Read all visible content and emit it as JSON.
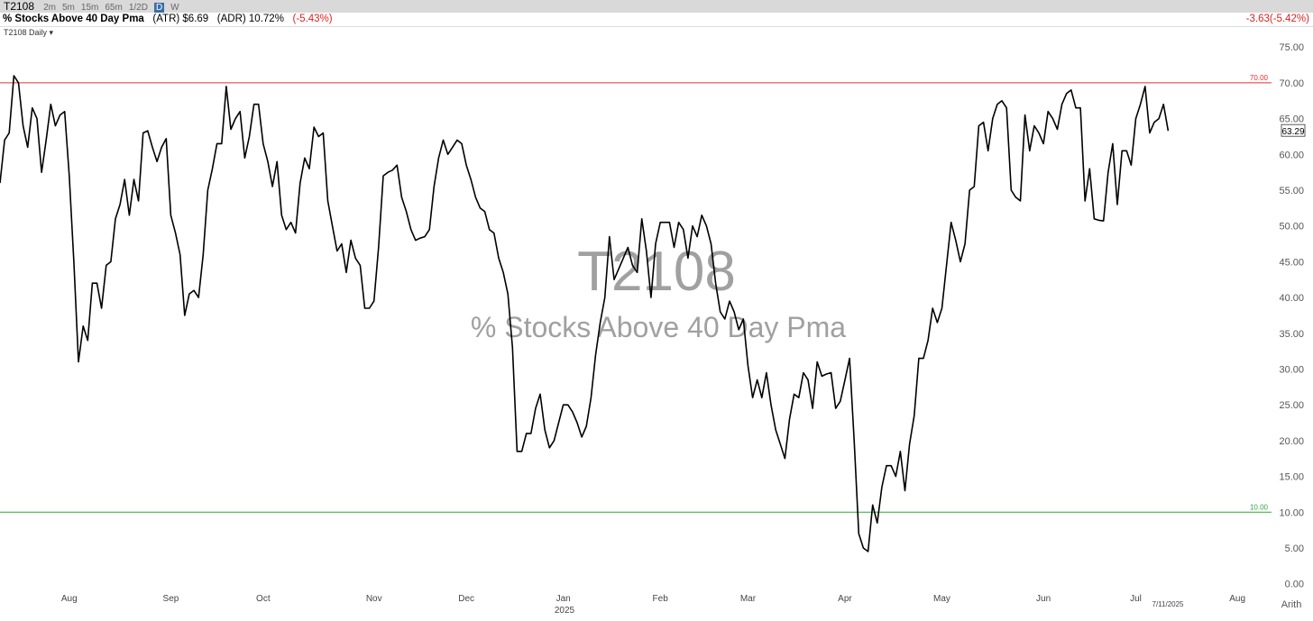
{
  "toolbar": {
    "symbol": "T2108",
    "intervals": [
      "2m",
      "5m",
      "15m",
      "65m",
      "1/2D",
      "D",
      "W"
    ]
  },
  "info": {
    "name": "% Stocks Above 40 Day Pma",
    "atr": "(ATR) $6.69",
    "adr": "(ADR) 10.72%",
    "pct": "(-5.43%)",
    "change": "-3.63",
    "change_pct": "(-5.42%)"
  },
  "chart_label": "T2108 Daily",
  "chart_data": {
    "type": "line",
    "watermark_symbol": "T2108",
    "watermark_name": "% Stocks Above 40 Day Pma",
    "year": "2025",
    "last_date": "7/11/2025",
    "scale": "Arith",
    "color": "#000000",
    "categories": [
      null,
      null,
      null,
      null,
      null,
      null,
      null,
      null,
      null,
      null,
      null,
      null,
      null,
      null,
      null,
      "Aug",
      null,
      null,
      null,
      null,
      null,
      null,
      null,
      null,
      null,
      null,
      null,
      null,
      null,
      null,
      null,
      null,
      null,
      null,
      null,
      null,
      null,
      "Sep",
      null,
      null,
      null,
      null,
      null,
      null,
      null,
      null,
      null,
      null,
      null,
      null,
      null,
      null,
      null,
      null,
      null,
      null,
      null,
      "Oct",
      null,
      null,
      null,
      null,
      null,
      null,
      null,
      null,
      null,
      null,
      null,
      null,
      null,
      null,
      null,
      null,
      null,
      null,
      null,
      null,
      null,
      null,
      null,
      "Nov",
      null,
      null,
      null,
      null,
      null,
      null,
      null,
      null,
      null,
      null,
      null,
      null,
      null,
      null,
      null,
      null,
      null,
      null,
      null,
      "Dec",
      null,
      null,
      null,
      null,
      null,
      null,
      null,
      null,
      null,
      null,
      null,
      null,
      null,
      null,
      null,
      null,
      null,
      null,
      null,
      null,
      "Jan",
      null,
      null,
      null,
      null,
      null,
      null,
      null,
      null,
      null,
      null,
      null,
      null,
      null,
      null,
      null,
      null,
      null,
      null,
      null,
      null,
      "Feb",
      null,
      null,
      null,
      null,
      null,
      null,
      null,
      null,
      null,
      null,
      null,
      null,
      null,
      null,
      null,
      null,
      null,
      null,
      "Mar",
      null,
      null,
      null,
      null,
      null,
      null,
      null,
      null,
      null,
      null,
      null,
      null,
      null,
      null,
      null,
      null,
      null,
      null,
      null,
      null,
      "Apr",
      null,
      null,
      null,
      null,
      null,
      null,
      null,
      null,
      null,
      null,
      null,
      null,
      null,
      null,
      null,
      null,
      null,
      null,
      null,
      null,
      "May",
      null,
      null,
      null,
      null,
      null,
      null,
      null,
      null,
      null,
      null,
      null,
      null,
      null,
      null,
      null,
      null,
      null,
      null,
      null,
      null,
      null,
      "Jun",
      null,
      null,
      null,
      null,
      null,
      null,
      null,
      null,
      null,
      null,
      null,
      null,
      null,
      null,
      null,
      null,
      null,
      null,
      null,
      "Jul",
      null,
      null,
      null,
      null,
      null,
      null,
      null,
      null,
      null,
      null,
      null,
      null,
      null,
      null,
      null,
      null,
      null,
      null,
      null,
      null,
      null,
      "Aug"
    ],
    "values": [
      56,
      62,
      63,
      71,
      70,
      64,
      61,
      66.5,
      65,
      57.5,
      62,
      67,
      64,
      65.5,
      66,
      57,
      45,
      31,
      36,
      34,
      42,
      42,
      38.5,
      44.5,
      45,
      51,
      53,
      56.5,
      51.5,
      56.5,
      53.5,
      63,
      63.3,
      61,
      59,
      61,
      62.2,
      51.5,
      49,
      46,
      37.5,
      40.5,
      41,
      40,
      46,
      55,
      58,
      61.5,
      61.5,
      69.5,
      63.5,
      65,
      66,
      59.5,
      62.5,
      67,
      67,
      61.5,
      59,
      55.5,
      59,
      51.5,
      49.5,
      50.5,
      49,
      56,
      59.5,
      58,
      63.8,
      62.5,
      63,
      53.5,
      50,
      46.5,
      47.5,
      43.5,
      48,
      45.5,
      44.5,
      38.5,
      38.5,
      39.5,
      47,
      57,
      57.5,
      57.8,
      58.5,
      54,
      52,
      49.5,
      48,
      48.3,
      48.5,
      49.5,
      55.5,
      59.5,
      62,
      60,
      61,
      62,
      61.5,
      58.5,
      56.5,
      54,
      52.5,
      52,
      49.5,
      49,
      45.5,
      43.5,
      40.5,
      33,
      18.5,
      18.5,
      21,
      21,
      24.5,
      26.5,
      21.5,
      19,
      20,
      22.5,
      25,
      25,
      24,
      22.5,
      20.5,
      22,
      26,
      32,
      36.5,
      40,
      48.5,
      42.5,
      44,
      45.5,
      47,
      44.5,
      43.5,
      51,
      46.5,
      40,
      47.5,
      50.5,
      50.5,
      50.5,
      47,
      50.5,
      49.5,
      45.5,
      50,
      48.5,
      51.5,
      50,
      47.5,
      42,
      38,
      37,
      39.5,
      38,
      35.5,
      37,
      30.5,
      26,
      28.5,
      26,
      29.5,
      25,
      21.5,
      19.5,
      17.5,
      23,
      26.5,
      26,
      29.5,
      28.5,
      24.5,
      31,
      29,
      29.3,
      29.5,
      24.5,
      25.5,
      28.5,
      31.5,
      20,
      7,
      5,
      4.5,
      11,
      8.5,
      13.5,
      16.5,
      16.5,
      15,
      18.5,
      13,
      19.5,
      23.5,
      31.5,
      31.5,
      34,
      38.5,
      36.5,
      38.5,
      44.5,
      50.5,
      48,
      45,
      47.5,
      55,
      55.5,
      64,
      64.5,
      60.5,
      65,
      67,
      67.5,
      66.5,
      55,
      54,
      53.5,
      65.5,
      60.5,
      64,
      63,
      61.5,
      66,
      65,
      63.5,
      67,
      68.5,
      69,
      66.5,
      66.5,
      53.5,
      58,
      51,
      50.8,
      50.7,
      57.5,
      61.5,
      53,
      60.5,
      60.5,
      58.5,
      65,
      67,
      69.5,
      63,
      64.5,
      65,
      67,
      63.29,
      null,
      null,
      null,
      null,
      null,
      null,
      null,
      null,
      null,
      null,
      null,
      null,
      null,
      null,
      null
    ],
    "ylim": [
      -0.8,
      77.8
    ],
    "yticks": [
      {
        "value": 0,
        "label": "0.00"
      },
      {
        "value": 5,
        "label": "5.00"
      },
      {
        "value": 10,
        "label": "10.00"
      },
      {
        "value": 15,
        "label": "15.00"
      },
      {
        "value": 20,
        "label": "20.00"
      },
      {
        "value": 25,
        "label": "25.00"
      },
      {
        "value": 30,
        "label": "30.00"
      },
      {
        "value": 35,
        "label": "35.00"
      },
      {
        "value": 40,
        "label": "40.00"
      },
      {
        "value": 45,
        "label": "45.00"
      },
      {
        "value": 50,
        "label": "50.00"
      },
      {
        "value": 55,
        "label": "55.00"
      },
      {
        "value": 60,
        "label": "60.00"
      },
      {
        "value": 65,
        "label": "65.00"
      },
      {
        "value": 70,
        "label": "70.00"
      },
      {
        "value": 75,
        "label": "75.00"
      }
    ],
    "hlines": [
      {
        "value": 70,
        "label": "70.00",
        "color": "#e0302f"
      },
      {
        "value": 10,
        "label": "10.00",
        "color": "#2fa83a"
      }
    ],
    "last_value_index": 253
  }
}
